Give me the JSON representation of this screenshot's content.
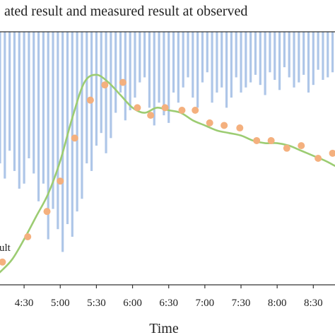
{
  "chart_data": {
    "type": "line",
    "title": "ated result and measured result at observed",
    "xlabel": "Time",
    "ylabel": "",
    "x_ticks": [
      "4:30",
      "5:00",
      "5:30",
      "6:00",
      "6:30",
      "7:00",
      "7:30",
      "8:00",
      "8:30"
    ],
    "x_range": [
      "4:10",
      "8:48"
    ],
    "y_range_relative": [
      0,
      1
    ],
    "grid": false,
    "legend_fragment": "ult",
    "colors": {
      "bars": "#aec6e8",
      "line": "#9ccc72",
      "points": "#f4b07e",
      "axis": "#333333",
      "text": "#222222"
    },
    "series": [
      {
        "type": "bar",
        "y_axis": "secondary-inverted",
        "style": "hanging from top",
        "x": [
          "4:10",
          "4:14",
          "4:18",
          "4:22",
          "4:26",
          "4:30",
          "4:34",
          "4:38",
          "4:42",
          "4:46",
          "4:50",
          "4:54",
          "4:58",
          "5:02",
          "5:06",
          "5:10",
          "5:14",
          "5:18",
          "5:22",
          "5:26",
          "5:30",
          "5:34",
          "5:38",
          "5:42",
          "5:46",
          "5:50",
          "5:54",
          "5:58",
          "6:02",
          "6:06",
          "6:10",
          "6:14",
          "6:18",
          "6:22",
          "6:26",
          "6:30",
          "6:34",
          "6:38",
          "6:42",
          "6:46",
          "6:50",
          "6:54",
          "6:58",
          "7:02",
          "7:06",
          "7:10",
          "7:14",
          "7:18",
          "7:22",
          "7:26",
          "7:30",
          "7:34",
          "7:38",
          "7:42",
          "7:46",
          "7:50",
          "7:54",
          "7:58",
          "8:02",
          "8:06",
          "8:10",
          "8:14",
          "8:18",
          "8:22",
          "8:26",
          "8:30",
          "8:34",
          "8:38",
          "8:42",
          "8:46"
        ],
        "values": [
          0.52,
          0.58,
          0.47,
          0.55,
          0.62,
          0.6,
          0.5,
          0.56,
          0.67,
          0.6,
          0.82,
          0.7,
          0.78,
          0.87,
          0.76,
          0.81,
          0.71,
          0.66,
          0.52,
          0.55,
          0.45,
          0.4,
          0.48,
          0.42,
          0.32,
          0.24,
          0.35,
          0.31,
          0.26,
          0.2,
          0.18,
          0.3,
          0.37,
          0.28,
          0.33,
          0.36,
          0.24,
          0.28,
          0.22,
          0.18,
          0.26,
          0.3,
          0.2,
          0.16,
          0.28,
          0.24,
          0.22,
          0.3,
          0.26,
          0.18,
          0.24,
          0.22,
          0.2,
          0.17,
          0.21,
          0.25,
          0.16,
          0.19,
          0.23,
          0.14,
          0.18,
          0.22,
          0.2,
          0.17,
          0.24,
          0.21,
          0.15,
          0.19,
          0.18,
          0.16
        ]
      },
      {
        "type": "scatter",
        "name": "measured result",
        "x": [
          "4:12",
          "4:33",
          "4:49",
          "5:00",
          "5:12",
          "5:25",
          "5:37",
          "5:52",
          "6:04",
          "6:15",
          "6:27",
          "6:41",
          "6:52",
          "7:04",
          "7:16",
          "7:29",
          "7:43",
          "7:55",
          "8:08",
          "8:20",
          "8:34",
          "8:46"
        ],
        "y": [
          0.09,
          0.19,
          0.29,
          0.41,
          0.58,
          0.73,
          0.79,
          0.8,
          0.7,
          0.67,
          0.7,
          0.69,
          0.69,
          0.64,
          0.63,
          0.62,
          0.57,
          0.57,
          0.54,
          0.55,
          0.5,
          0.52
        ]
      },
      {
        "type": "line",
        "name": "simulated result",
        "x": [
          "4:10",
          "4:20",
          "4:30",
          "4:40",
          "4:50",
          "5:00",
          "5:10",
          "5:20",
          "5:30",
          "5:40",
          "5:50",
          "6:00",
          "6:10",
          "6:20",
          "6:30",
          "6:40",
          "6:50",
          "7:00",
          "7:10",
          "7:20",
          "7:30",
          "7:40",
          "7:50",
          "8:00",
          "8:10",
          "8:20",
          "8:30",
          "8:40",
          "8:48"
        ],
        "y": [
          0.05,
          0.1,
          0.18,
          0.27,
          0.36,
          0.49,
          0.66,
          0.8,
          0.83,
          0.8,
          0.75,
          0.7,
          0.68,
          0.7,
          0.69,
          0.68,
          0.65,
          0.63,
          0.61,
          0.6,
          0.59,
          0.57,
          0.56,
          0.56,
          0.55,
          0.53,
          0.51,
          0.49,
          0.47
        ]
      }
    ]
  }
}
